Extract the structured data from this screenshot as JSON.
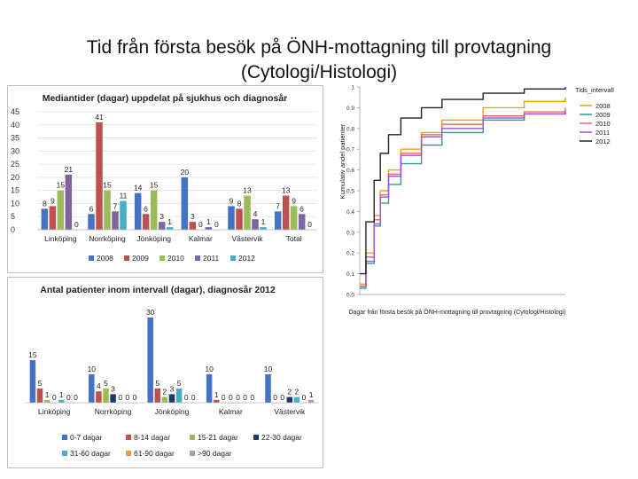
{
  "slide_title_line1": "Tid från första besök på ÖNH-mottagning till provtagning",
  "slide_title_line2": "(Cytologi/Histologi)",
  "chart_data": [
    {
      "type": "bar",
      "title": "Mediantider (dagar) uppdelat på sjukhus och diagnosår",
      "categories": [
        "Linköping",
        "Norrköping",
        "Jönköping",
        "Kalmar",
        "Västervik",
        "Total"
      ],
      "ylim": [
        0,
        45
      ],
      "yticks": [
        0,
        5,
        10,
        15,
        20,
        25,
        30,
        35,
        40,
        45
      ],
      "series": [
        {
          "name": "2008",
          "color": "#4472c4",
          "values": [
            8,
            6,
            14,
            20,
            9,
            7
          ],
          "labels": [
            "8",
            "6",
            "14",
            "20",
            "9",
            "7"
          ]
        },
        {
          "name": "2009",
          "color": "#c0504d",
          "values": [
            9,
            41,
            6,
            3,
            8,
            13
          ],
          "labels": [
            "9",
            "41",
            "6",
            "3",
            "8",
            "13"
          ]
        },
        {
          "name": "2010",
          "color": "#9bbb59",
          "values": [
            15,
            15,
            15,
            0,
            13,
            9
          ],
          "labels": [
            "15",
            "15",
            "15",
            "0",
            "13",
            "9"
          ]
        },
        {
          "name": "2011",
          "color": "#8064a2",
          "values": [
            21,
            7,
            3,
            1,
            4,
            6
          ],
          "labels": [
            "21",
            "7",
            "3",
            "1",
            "4",
            "6"
          ]
        },
        {
          "name": "2012",
          "color": "#4bacc6",
          "values": [
            0,
            11,
            1,
            0,
            1,
            0
          ],
          "labels": [
            "0",
            "11",
            "1",
            "0",
            "1",
            "0"
          ]
        }
      ]
    },
    {
      "type": "bar",
      "title": "Antal patienter inom intervall (dagar), diagnosår 2012",
      "categories": [
        "Linköping",
        "Norrköping",
        "Jönköping",
        "Kalmar",
        "Västervik"
      ],
      "ylim": [
        0,
        30
      ],
      "series": [
        {
          "name": "0-7 dagar",
          "color": "#4472c4",
          "values": [
            15,
            10,
            30,
            10,
            10
          ],
          "labels": [
            "15",
            "10",
            "30",
            "10",
            "10"
          ]
        },
        {
          "name": "8-14 dagar",
          "color": "#c0504d",
          "values": [
            5,
            4,
            5,
            1,
            0
          ],
          "labels": [
            "5",
            "4",
            "5",
            "1",
            "0"
          ]
        },
        {
          "name": "15-21 dagar",
          "color": "#9bbb59",
          "values": [
            1,
            5,
            2,
            0,
            0
          ],
          "labels": [
            "1",
            "5",
            "2",
            "0",
            "0"
          ]
        },
        {
          "name": "22-30 dagar",
          "color": "#1f3864",
          "values": [
            0,
            3,
            3,
            0,
            2
          ],
          "labels": [
            "0",
            "3",
            "3",
            "0",
            "2"
          ]
        },
        {
          "name": "31-60 dagar",
          "color": "#4bacc6",
          "values": [
            1,
            0,
            5,
            0,
            2
          ],
          "labels": [
            "1",
            "0",
            "5",
            "0",
            "2"
          ]
        },
        {
          "name": "61-90 dagar",
          "color": "#f79646",
          "values": [
            0,
            0,
            0,
            0,
            0
          ],
          "labels": [
            "0",
            "0",
            "0",
            "0",
            "0"
          ]
        },
        {
          "name": ">90 dagar",
          "color": "#a5a5a5",
          "values": [
            0,
            0,
            0,
            0,
            1
          ],
          "labels": [
            "0",
            "0",
            "0",
            "0",
            "1"
          ]
        }
      ]
    },
    {
      "type": "line",
      "xlabel": "Dagar från första besök på ÖNH-mottagning till provtagning (Cytologi/Histologi)",
      "ylabel": "Kumulativ andel patienter",
      "ylim": [
        0,
        1
      ],
      "yticks": [
        "0.0",
        "0.1",
        "0.2",
        "0.3",
        "0.4",
        "0.5",
        "0.6",
        "0.7",
        "0.8",
        "0.9",
        "1"
      ],
      "legend_title": "Tids_intervall",
      "legend_position": "top-right",
      "series": [
        {
          "name": "2008",
          "color": "#f0a202",
          "x": [
            0,
            3,
            7,
            10,
            14,
            20,
            30,
            40,
            60,
            80,
            100
          ],
          "y": [
            0.05,
            0.2,
            0.38,
            0.5,
            0.6,
            0.7,
            0.78,
            0.84,
            0.9,
            0.93,
            0.95
          ]
        },
        {
          "name": "2009",
          "color": "#2a9d8f",
          "x": [
            0,
            3,
            7,
            10,
            14,
            20,
            30,
            40,
            60,
            80,
            100
          ],
          "y": [
            0.03,
            0.15,
            0.33,
            0.44,
            0.53,
            0.63,
            0.72,
            0.78,
            0.84,
            0.87,
            0.89
          ]
        },
        {
          "name": "2010",
          "color": "#e76f51",
          "x": [
            0,
            3,
            7,
            10,
            14,
            20,
            30,
            40,
            60,
            80,
            100
          ],
          "y": [
            0.04,
            0.18,
            0.36,
            0.48,
            0.58,
            0.68,
            0.77,
            0.82,
            0.86,
            0.88,
            0.9
          ]
        },
        {
          "name": "2011",
          "color": "#9d4edd",
          "x": [
            0,
            3,
            7,
            10,
            14,
            20,
            30,
            40,
            60,
            80,
            100
          ],
          "y": [
            0.04,
            0.16,
            0.34,
            0.47,
            0.57,
            0.67,
            0.76,
            0.8,
            0.85,
            0.87,
            0.88
          ]
        },
        {
          "name": "2012",
          "color": "#222222",
          "x": [
            0,
            3,
            7,
            10,
            14,
            20,
            30,
            40,
            60,
            80,
            100
          ],
          "y": [
            0.1,
            0.35,
            0.55,
            0.68,
            0.77,
            0.85,
            0.9,
            0.94,
            0.97,
            0.99,
            1.0
          ]
        }
      ]
    }
  ]
}
